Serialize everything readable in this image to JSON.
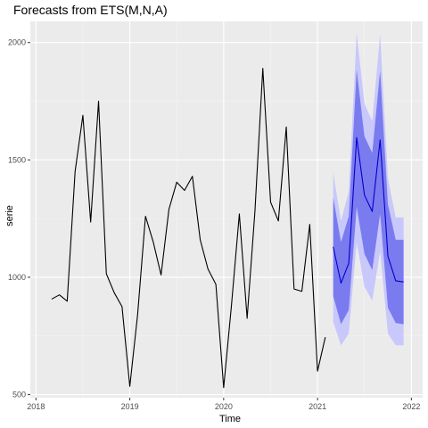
{
  "chart_data": {
    "type": "line",
    "title": "Forecasts from ETS(M,N,A)",
    "xlabel": "Time",
    "ylabel": "serie",
    "xlim": [
      2017.94,
      2022.12
    ],
    "ylim": [
      487,
      2090
    ],
    "x_ticks": [
      2018,
      2019,
      2020,
      2021,
      2022
    ],
    "x_tick_labels": [
      "2018",
      "2019",
      "2020",
      "2021",
      "2022"
    ],
    "y_ticks": [
      500,
      1000,
      1500,
      2000
    ],
    "y_tick_labels": [
      "500",
      "1000",
      "1500",
      "2000"
    ],
    "grid": true,
    "legend": "none",
    "colors": {
      "panel": "#ebebeb",
      "grid_major": "#ffffff",
      "grid_minor": "#f5f5f5",
      "history_line": "#000000",
      "forecast_line": "#0000cc",
      "band_95": "#c8c8fb",
      "band_80": "#7b7bf0",
      "tick_text": "#4d4d4d"
    },
    "series": [
      {
        "role": "history",
        "x": [
          2018.167,
          2018.25,
          2018.333,
          2018.417,
          2018.5,
          2018.583,
          2018.667,
          2018.75,
          2018.833,
          2018.917,
          2019.0,
          2019.083,
          2019.167,
          2019.25,
          2019.333,
          2019.417,
          2019.5,
          2019.583,
          2019.667,
          2019.75,
          2019.833,
          2019.917,
          2020.0,
          2020.083,
          2020.167,
          2020.25,
          2020.333,
          2020.417,
          2020.5,
          2020.583,
          2020.667,
          2020.75,
          2020.833,
          2020.917,
          2021.0,
          2021.083
        ],
        "values": [
          907,
          925,
          898,
          1450,
          1690,
          1235,
          1750,
          1015,
          935,
          875,
          535,
          840,
          1260,
          1150,
          1010,
          1290,
          1405,
          1370,
          1430,
          1160,
          1035,
          970,
          530,
          880,
          1270,
          825,
          1280,
          1890,
          1320,
          1240,
          1640,
          950,
          940,
          1225,
          600,
          745
        ]
      },
      {
        "role": "point-forecast",
        "x": [
          2021.167,
          2021.25,
          2021.333,
          2021.417,
          2021.5,
          2021.583,
          2021.667,
          2021.75,
          2021.833,
          2021.917
        ],
        "values": [
          1130,
          975,
          1060,
          1595,
          1350,
          1280,
          1585,
          1090,
          985,
          980
        ]
      }
    ],
    "intervals": {
      "x": [
        2021.167,
        2021.25,
        2021.333,
        2021.417,
        2021.5,
        2021.583,
        2021.667,
        2021.75,
        2021.833,
        2021.917
      ],
      "lo95": [
        810,
        710,
        760,
        1150,
        960,
        900,
        1110,
        760,
        710,
        710
      ],
      "hi95": [
        1445,
        1240,
        1365,
        2040,
        1740,
        1665,
        2035,
        1420,
        1255,
        1255
      ],
      "lo80": [
        920,
        800,
        860,
        1300,
        1100,
        1030,
        1270,
        870,
        805,
        800
      ],
      "hi80": [
        1340,
        1150,
        1260,
        1885,
        1600,
        1530,
        1880,
        1310,
        1160,
        1160
      ]
    }
  }
}
